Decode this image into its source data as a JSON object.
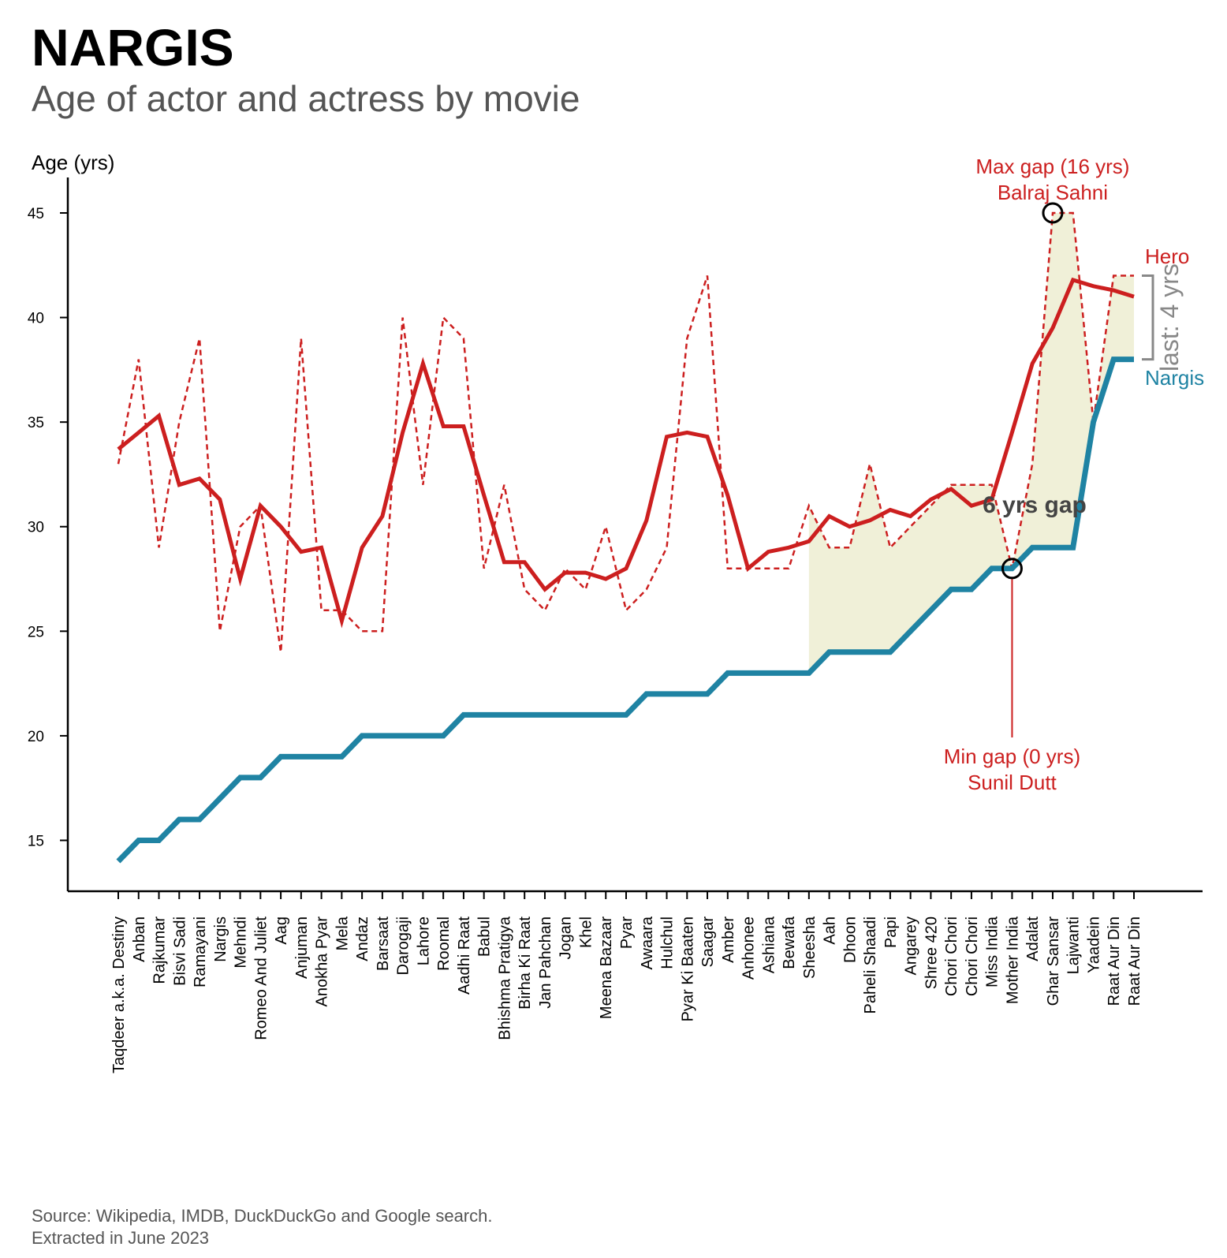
{
  "header": {
    "title": "NARGIS",
    "subtitle": "Age of actor and actress by movie"
  },
  "footer": {
    "source_line1": "Source: Wikipedia, IMDB, DuckDuckGo and Google search.",
    "source_line2": "Extracted in June 2023"
  },
  "colors": {
    "hero": "#cc1f1f",
    "actress": "#1f83a3",
    "fill": "#f0f0d8",
    "last_gap": "#888888"
  },
  "chart_data": {
    "type": "line",
    "ylabel": "Age (yrs)",
    "ylim": [
      12.5,
      46.5
    ],
    "yticks": [
      15,
      20,
      25,
      30,
      35,
      40,
      45
    ],
    "categories": [
      "Taqdeer a.k.a. Destiny",
      "Anban",
      "Rajkumar",
      "Bisvi Sadi",
      "Ramayani",
      "Nargis",
      "Mehndi",
      "Romeo And Juliet",
      "Aag",
      "Anjuman",
      "Anokha Pyar",
      "Mela",
      "Andaz",
      "Barsaat",
      "Darogaji",
      "Lahore",
      "Roomal",
      "Aadhi Raat",
      "Babul",
      "Bhishma Pratigya",
      "Birha Ki Raat",
      "Jan Pahchan",
      "Jogan",
      "Khel",
      "Meena Bazaar",
      "Pyar",
      "Awaara",
      "Hulchul",
      "Pyar Ki Baaten",
      "Saagar",
      "Amber",
      "Anhonee",
      "Ashiana",
      "Bewafa",
      "Sheesha",
      "Aah",
      "Dhoon",
      "Paheli Shaadi",
      "Papi",
      "Angarey",
      "Shree 420",
      "Chori Chori",
      "Chori Chori",
      "Miss India",
      "Mother India",
      "Adalat",
      "Ghar Sansar",
      "Lajwanti",
      "Yaadein",
      "Raat Aur Din",
      "Raat Aur Din"
    ],
    "series": [
      {
        "name": "Hero",
        "style": "dashed",
        "values": [
          33,
          38,
          29,
          35,
          39,
          25,
          30,
          31,
          24,
          39,
          26,
          26,
          25,
          25,
          40,
          32,
          40,
          39,
          28,
          32,
          27,
          26,
          28,
          27,
          30,
          26,
          27,
          29,
          39,
          42,
          28,
          28,
          28,
          28,
          31,
          29,
          29,
          33,
          29,
          30,
          31,
          32,
          32,
          32,
          28,
          33,
          45,
          45,
          35,
          42,
          42
        ]
      },
      {
        "name": "",
        "style": "solid",
        "values": [
          33.7,
          34.5,
          35.3,
          32.0,
          32.3,
          31.3,
          27.5,
          31.0,
          30.0,
          28.8,
          29.0,
          25.5,
          29.0,
          30.5,
          34.5,
          37.8,
          34.8,
          34.8,
          31.5,
          28.3,
          28.3,
          27.0,
          27.8,
          27.8,
          27.5,
          28.0,
          30.3,
          34.3,
          34.5,
          34.3,
          31.5,
          28.0,
          28.8,
          29.0,
          29.3,
          30.5,
          30.0,
          30.3,
          30.8,
          30.5,
          31.3,
          31.8,
          31.0,
          31.3,
          34.5,
          37.8,
          39.5,
          41.8,
          41.5,
          41.3,
          41.0
        ]
      },
      {
        "name": "Nargis",
        "style": "thick",
        "values": [
          14,
          15,
          15,
          16,
          16,
          17,
          18,
          18,
          19,
          19,
          19,
          19,
          20,
          20,
          20,
          20,
          20,
          21,
          21,
          21,
          21,
          21,
          21,
          21,
          21,
          21,
          22,
          22,
          22,
          22,
          23,
          23,
          23,
          23,
          23,
          24,
          24,
          24,
          24,
          25,
          26,
          27,
          27,
          28,
          28,
          29,
          29,
          29,
          35,
          38,
          38
        ]
      }
    ],
    "shade_from_index": 34,
    "annotations": {
      "max_gap_line1": "Max gap (16 yrs)",
      "max_gap_line2": "Balraj Sahni",
      "max_gap_index": 46,
      "max_gap_value": 45,
      "min_gap_line1": "Min gap (0 yrs)",
      "min_gap_line2": "Sunil Dutt",
      "min_gap_index": 44,
      "min_gap_value": 28,
      "mean_gap": "6 yrs gap",
      "last_gap": "last: 4 yrs"
    }
  }
}
